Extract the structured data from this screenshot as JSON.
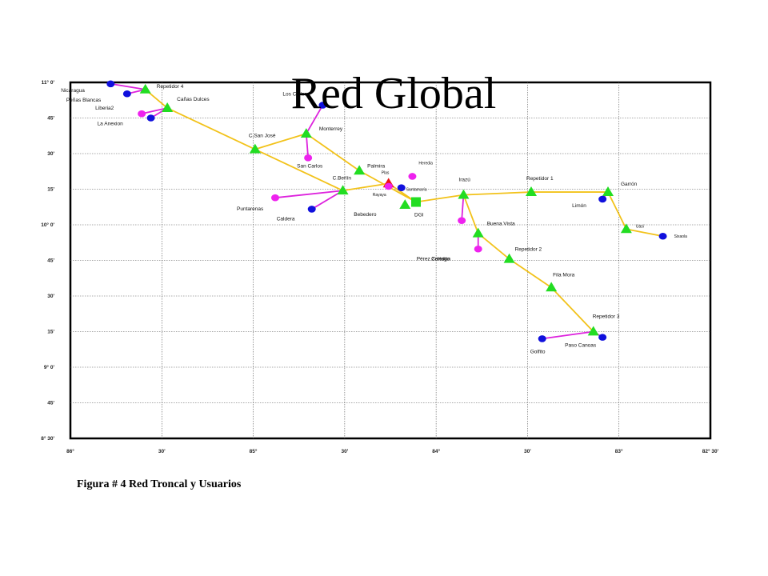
{
  "title": "Red Global",
  "caption": "Figura # 4 Red Troncal y Usuarios",
  "colors": {
    "trunk": "#f2c21a",
    "user_link": "#dd22dd",
    "repeater": "#22dd22",
    "user_blue": "#1010dd",
    "user_magenta": "#ee22ee",
    "hub_red": "#ee1111",
    "grid": "#555555"
  },
  "axes": {
    "lon_ticks": [
      "86°",
      "30'",
      "85°",
      "30'",
      "84°",
      "30'",
      "83°",
      "82° 30'"
    ],
    "lat_ticks": [
      "11° 0'",
      "45'",
      "30'",
      "15'",
      "10° 0'",
      "45'",
      "30'",
      "15'",
      "9° 0'",
      "45'",
      "8° 30'"
    ]
  },
  "nodes": [
    {
      "id": "nicaragua",
      "label": "Nicaragua",
      "type": "circle",
      "color": "blue",
      "lon": -85.78,
      "lat": 10.99
    },
    {
      "id": "repetidor4",
      "label": "Repetidor 4",
      "type": "triangle",
      "lon": -85.59,
      "lat": 10.95
    },
    {
      "id": "penas_blancas",
      "label": "Peñas Blancas",
      "type": "circle",
      "color": "blue",
      "lon": -85.69,
      "lat": 10.92
    },
    {
      "id": "canas_dulces",
      "label": "Cañas Dulces",
      "type": "triangle",
      "lon": -85.47,
      "lat": 10.82
    },
    {
      "id": "liberia2",
      "label": "Liberia2",
      "type": "circle",
      "color": "magenta",
      "lon": -85.61,
      "lat": 10.78
    },
    {
      "id": "la_anexion",
      "label": "La Anexion",
      "type": "circle",
      "color": "blue",
      "lon": -85.56,
      "lat": 10.75
    },
    {
      "id": "los_chiles",
      "label": "Los Chiles",
      "type": "circle",
      "color": "blue",
      "lon": -84.62,
      "lat": 10.84
    },
    {
      "id": "monterrey",
      "label": "Monterrey",
      "type": "triangle",
      "lon": -84.71,
      "lat": 10.64
    },
    {
      "id": "csan_jose",
      "label": "C.San José",
      "type": "triangle",
      "lon": -84.99,
      "lat": 10.53
    },
    {
      "id": "san_carlos",
      "label": "San Carlos",
      "type": "circle",
      "color": "magenta",
      "lon": -84.7,
      "lat": 10.47
    },
    {
      "id": "palmira",
      "label": "Palmira",
      "type": "triangle",
      "lon": -84.42,
      "lat": 10.38
    },
    {
      "id": "heredia",
      "label": "Heredia",
      "type": "circle",
      "color": "magenta",
      "lon": -84.13,
      "lat": 10.34
    },
    {
      "id": "plas",
      "label": "Plas",
      "type": "triangle",
      "color": "red",
      "lon": -84.26,
      "lat": 10.29
    },
    {
      "id": "santamaria",
      "label": "Santamaría",
      "type": "circle",
      "color": "blue",
      "lon": -84.19,
      "lat": 10.26
    },
    {
      "id": "rayaya",
      "label": "Rayaya",
      "type": "circle",
      "color": "magenta",
      "lon": -84.26,
      "lat": 10.27
    },
    {
      "id": "cberlin",
      "label": "C.Berlín",
      "type": "triangle",
      "lon": -84.51,
      "lat": 10.24
    },
    {
      "id": "puntarenas",
      "label": "Puntarenas",
      "type": "circle",
      "color": "magenta",
      "lon": -84.88,
      "lat": 10.19
    },
    {
      "id": "caldera",
      "label": "Caldera",
      "type": "circle",
      "color": "blue",
      "lon": -84.68,
      "lat": 10.11
    },
    {
      "id": "bebedero",
      "label": "Bebedero",
      "type": "triangle",
      "lon": -84.17,
      "lat": 10.14
    },
    {
      "id": "dgi",
      "label": "DGI",
      "type": "square",
      "lon": -84.11,
      "lat": 10.16
    },
    {
      "id": "irazu",
      "label": "Irazú",
      "type": "triangle",
      "lon": -83.85,
      "lat": 10.21
    },
    {
      "id": "cartago",
      "label": "Cartago",
      "type": "circle",
      "color": "magenta",
      "lon": -83.86,
      "lat": 10.03
    },
    {
      "id": "repetidor1",
      "label": "Repetidor 1",
      "type": "triangle",
      "lon": -83.48,
      "lat": 10.23
    },
    {
      "id": "garron",
      "label": "Garrón",
      "type": "triangle",
      "lon": -83.06,
      "lat": 10.23
    },
    {
      "id": "limon",
      "label": "Limón",
      "type": "circle",
      "color": "blue",
      "lon": -83.09,
      "lat": 10.18
    },
    {
      "id": "uasi",
      "label": "Uasi",
      "type": "triangle",
      "lon": -82.96,
      "lat": 9.97
    },
    {
      "id": "sixaola",
      "label": "Sixaola",
      "type": "circle",
      "color": "blue",
      "lon": -82.76,
      "lat": 9.92
    },
    {
      "id": "buena_vista",
      "label": "Buena Vista",
      "type": "triangle",
      "lon": -83.77,
      "lat": 9.94
    },
    {
      "id": "perez_zeledon",
      "label": "Pérez Zeledón",
      "type": "circle",
      "color": "magenta",
      "lon": -83.77,
      "lat": 9.83
    },
    {
      "id": "repetidor2",
      "label": "Repetidor 2",
      "type": "triangle",
      "lon": -83.6,
      "lat": 9.76
    },
    {
      "id": "fila_mora",
      "label": "Fila Mora",
      "type": "triangle",
      "lon": -83.37,
      "lat": 9.56
    },
    {
      "id": "repetidor3",
      "label": "Repetidor 3",
      "type": "triangle",
      "lon": -83.14,
      "lat": 9.25
    },
    {
      "id": "golfito",
      "label": "Golfito",
      "type": "circle",
      "color": "blue",
      "lon": -83.42,
      "lat": 9.2
    },
    {
      "id": "paso_canoas",
      "label": "Paso Canoas",
      "type": "circle",
      "color": "blue",
      "lon": -83.09,
      "lat": 9.21
    }
  ],
  "trunk_links": [
    [
      "repetidor4",
      "canas_dulces"
    ],
    [
      "canas_dulces",
      "csan_jose"
    ],
    [
      "csan_jose",
      "monterrey"
    ],
    [
      "monterrey",
      "palmira"
    ],
    [
      "palmira",
      "dgi"
    ],
    [
      "csan_jose",
      "cberlin"
    ],
    [
      "cberlin",
      "plas"
    ],
    [
      "plas",
      "dgi"
    ],
    [
      "dgi",
      "irazu"
    ],
    [
      "irazu",
      "repetidor1"
    ],
    [
      "repetidor1",
      "garron"
    ],
    [
      "garron",
      "uasi"
    ],
    [
      "uasi",
      "sixaola"
    ],
    [
      "irazu",
      "buena_vista"
    ],
    [
      "buena_vista",
      "repetidor2"
    ],
    [
      "repetidor2",
      "fila_mora"
    ],
    [
      "fila_mora",
      "repetidor3"
    ]
  ],
  "user_links": [
    [
      "nicaragua",
      "repetidor4"
    ],
    [
      "penas_blancas",
      "repetidor4"
    ],
    [
      "liberia2",
      "canas_dulces"
    ],
    [
      "la_anexion",
      "canas_dulces"
    ],
    [
      "los_chiles",
      "monterrey"
    ],
    [
      "monterrey",
      "san_carlos"
    ],
    [
      "cberlin",
      "puntarenas"
    ],
    [
      "cberlin",
      "caldera"
    ],
    [
      "irazu",
      "cartago"
    ],
    [
      "buena_vista",
      "perez_zeledon"
    ],
    [
      "garron",
      "limon"
    ],
    [
      "repetidor3",
      "golfito"
    ],
    [
      "repetidor3",
      "paso_canoas"
    ]
  ]
}
